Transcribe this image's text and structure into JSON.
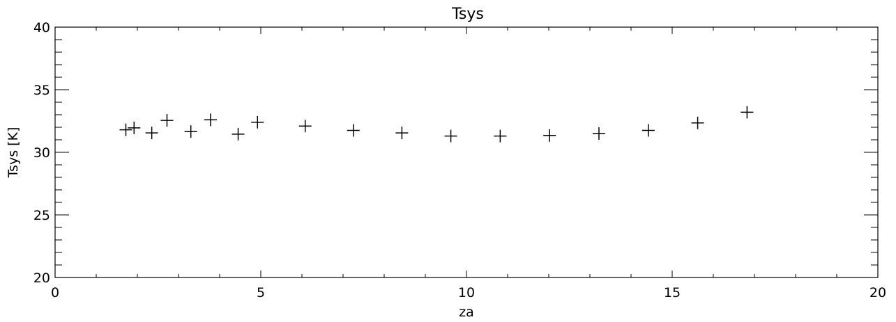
{
  "chart_data": {
    "type": "scatter",
    "title": "Tsys",
    "xlabel": "za",
    "ylabel": "Tsys [K]",
    "xlim": [
      0,
      20
    ],
    "ylim": [
      20,
      40
    ],
    "x_ticks": [
      "0",
      "5",
      "10",
      "15",
      "20"
    ],
    "y_ticks": [
      "20",
      "25",
      "30",
      "35",
      "40"
    ],
    "grid": false,
    "marker": "plus",
    "color": "#000000",
    "series": [
      {
        "points": [
          {
            "x": 1.72,
            "y": 31.8
          },
          {
            "x": 1.92,
            "y": 31.95
          },
          {
            "x": 2.35,
            "y": 31.55
          },
          {
            "x": 2.72,
            "y": 32.55
          },
          {
            "x": 3.3,
            "y": 31.65
          },
          {
            "x": 3.78,
            "y": 32.6
          },
          {
            "x": 4.45,
            "y": 31.45
          },
          {
            "x": 4.92,
            "y": 32.4
          },
          {
            "x": 6.08,
            "y": 32.1
          },
          {
            "x": 7.25,
            "y": 31.75
          },
          {
            "x": 8.43,
            "y": 31.55
          },
          {
            "x": 9.62,
            "y": 31.3
          },
          {
            "x": 10.82,
            "y": 31.3
          },
          {
            "x": 12.02,
            "y": 31.35
          },
          {
            "x": 13.22,
            "y": 31.5
          },
          {
            "x": 14.42,
            "y": 31.75
          },
          {
            "x": 15.62,
            "y": 32.35
          },
          {
            "x": 16.82,
            "y": 33.2
          }
        ]
      }
    ]
  }
}
